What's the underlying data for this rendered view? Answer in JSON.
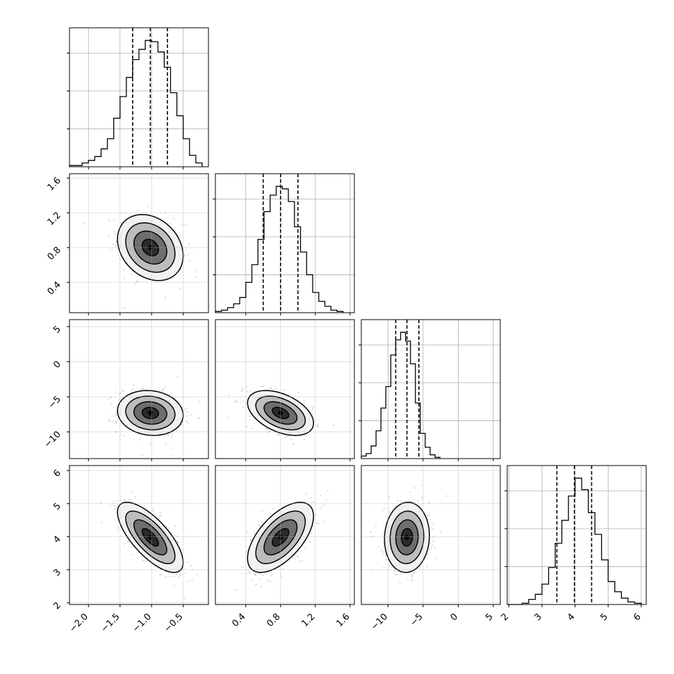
{
  "chart_data": {
    "type": "scatter",
    "title": "",
    "grid": true,
    "parameters": [
      {
        "name": "",
        "range": [
          -2.3,
          -0.1
        ],
        "ticks": [
          -2.0,
          -1.5,
          -1.0,
          -0.5
        ],
        "tick_labels": [
          "−2.0",
          "−1.5",
          "−1.0",
          "−0.5"
        ],
        "mean": -1.02,
        "sd": 0.26,
        "quantiles": [
          -1.3,
          -1.02,
          -0.75
        ]
      },
      {
        "name": "",
        "range": [
          0.05,
          1.65
        ],
        "ticks": [
          0.4,
          0.8,
          1.2,
          1.6
        ],
        "tick_labels": [
          "0.4",
          "0.8",
          "1.2",
          "1.6"
        ],
        "mean": 0.8,
        "sd": 0.19,
        "quantiles": [
          0.6,
          0.8,
          1.0
        ]
      },
      {
        "name": "",
        "range": [
          -13.8,
          6.0
        ],
        "ticks": [
          -10,
          -5,
          0,
          5
        ],
        "tick_labels": [
          "−10",
          "−5",
          "0",
          "5"
        ],
        "mean": -7.3,
        "sd": 1.6,
        "quantiles": [
          -8.9,
          -7.3,
          -5.6
        ]
      },
      {
        "name": "",
        "range": [
          1.95,
          6.15
        ],
        "ticks": [
          2,
          3,
          4,
          5,
          6
        ],
        "tick_labels": [
          "2",
          "3",
          "4",
          "5",
          "6"
        ],
        "mean": 3.98,
        "sd": 0.53,
        "quantiles": [
          3.45,
          3.98,
          4.5
        ]
      }
    ],
    "histograms": [
      {
        "param": 0,
        "bin_edges": [
          -2.3,
          -2.2,
          -2.1,
          -2.0,
          -1.9,
          -1.8,
          -1.7,
          -1.6,
          -1.5,
          -1.4,
          -1.3,
          -1.2,
          -1.1,
          -1.0,
          -0.9,
          -0.8,
          -0.7,
          -0.6,
          -0.5,
          -0.4,
          -0.3,
          -0.2
        ],
        "counts": [
          1,
          1,
          3,
          5,
          8,
          14,
          22,
          38,
          55,
          70,
          84,
          92,
          99,
          98,
          90,
          78,
          58,
          40,
          22,
          9,
          3
        ]
      },
      {
        "param": 1,
        "bin_edges": [
          0.05,
          0.12,
          0.19,
          0.26,
          0.33,
          0.4,
          0.47,
          0.54,
          0.61,
          0.68,
          0.75,
          0.82,
          0.89,
          0.96,
          1.03,
          1.1,
          1.17,
          1.24,
          1.31,
          1.38,
          1.45,
          1.52
        ],
        "counts": [
          1,
          2,
          4,
          7,
          12,
          24,
          38,
          58,
          80,
          93,
          100,
          98,
          88,
          68,
          48,
          30,
          16,
          9,
          5,
          2,
          1
        ]
      },
      {
        "param": 2,
        "bin_edges": [
          -13.8,
          -13.1,
          -12.4,
          -11.7,
          -11.0,
          -10.3,
          -9.6,
          -8.9,
          -8.2,
          -7.5,
          -6.8,
          -6.1,
          -5.4,
          -4.7,
          -4.0,
          -3.3,
          -2.6
        ],
        "counts": [
          2,
          4,
          10,
          22,
          40,
          57,
          82,
          94,
          100,
          93,
          75,
          44,
          20,
          9,
          3,
          1
        ]
      },
      {
        "param": 3,
        "bin_edges": [
          2.4,
          2.6,
          2.8,
          3.0,
          3.2,
          3.4,
          3.6,
          3.8,
          4.0,
          4.2,
          4.4,
          4.6,
          4.8,
          5.0,
          5.2,
          5.4,
          5.6,
          5.8,
          6.0
        ],
        "counts": [
          1,
          4,
          8,
          16,
          29,
          48,
          66,
          85,
          99,
          90,
          72,
          55,
          35,
          18,
          10,
          5,
          2,
          1
        ]
      }
    ],
    "correlations": [
      {
        "x": 0,
        "y": 1,
        "rho": -0.25
      },
      {
        "x": 0,
        "y": 2,
        "rho": -0.1
      },
      {
        "x": 1,
        "y": 2,
        "rho": -0.45
      },
      {
        "x": 0,
        "y": 3,
        "rho": -0.72
      },
      {
        "x": 1,
        "y": 3,
        "rho": 0.6
      },
      {
        "x": 2,
        "y": 3,
        "rho": 0.05
      }
    ],
    "contour_levels_sigma": [
      0.5,
      1.0,
      1.5,
      2.0
    ],
    "colors": {
      "marks": "#000000",
      "scatter": "#8c8c8c",
      "grid": "#b0b0b0"
    }
  }
}
